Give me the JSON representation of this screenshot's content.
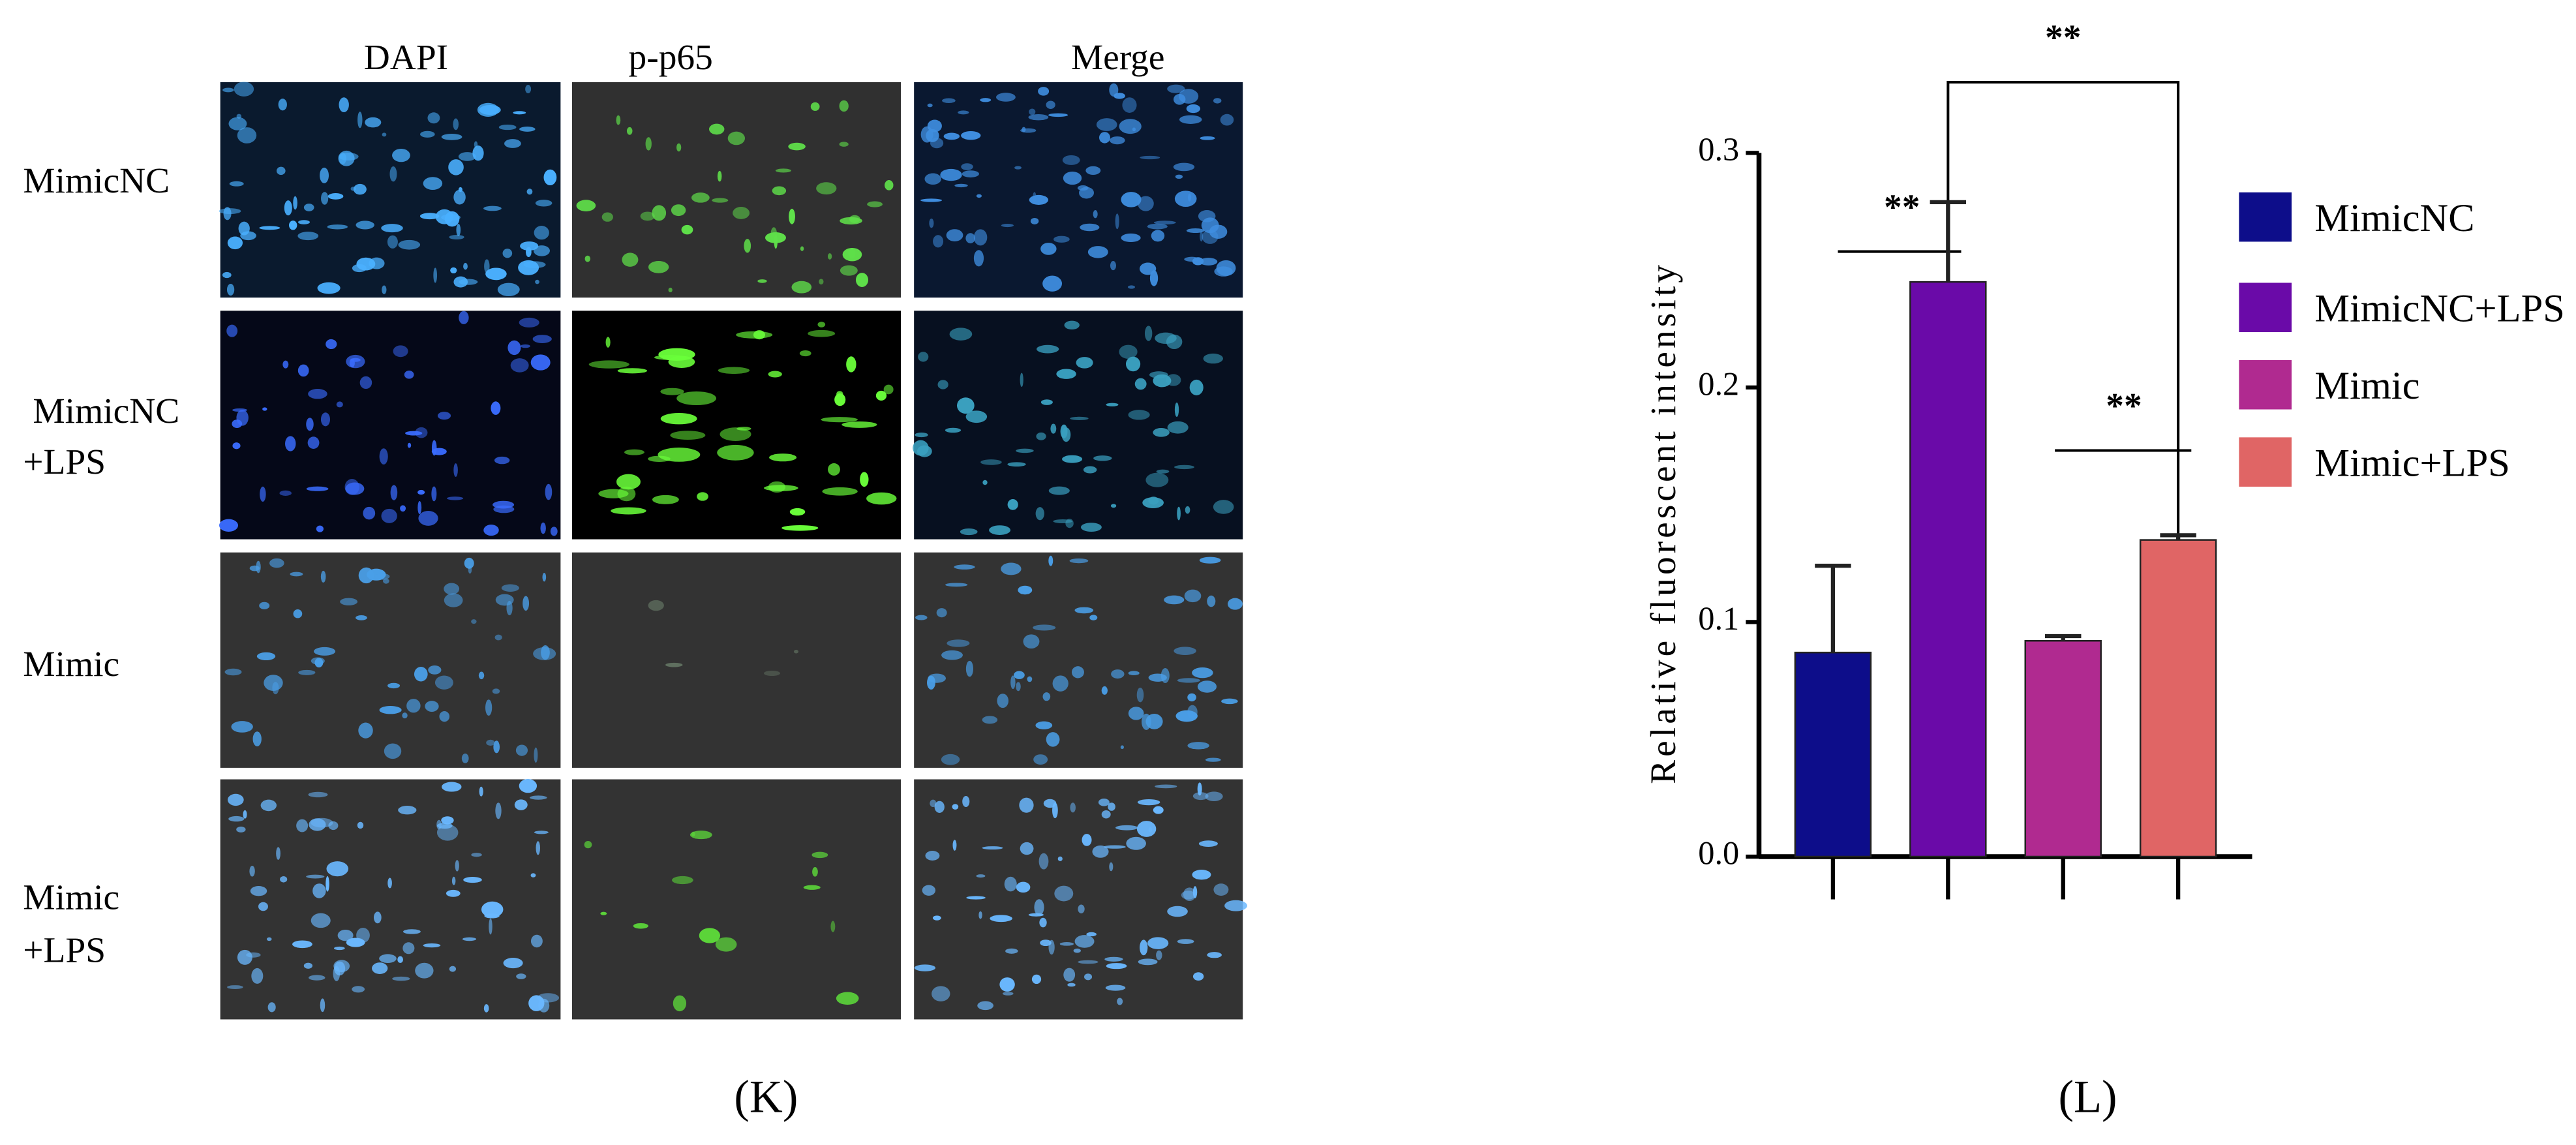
{
  "panel_k": {
    "label": "(K)",
    "columns": [
      "DAPI",
      "p-p65",
      "Merge"
    ],
    "rows": [
      {
        "label": [
          "MimicNC"
        ]
      },
      {
        "label": [
          "MimicNC",
          "+LPS"
        ]
      },
      {
        "label": [
          "Mimic"
        ]
      },
      {
        "label": [
          "Mimic",
          "+LPS"
        ]
      }
    ]
  },
  "panel_l": {
    "label": "(L)"
  },
  "chart_data": {
    "type": "bar",
    "y_label": "Relative fluorescent intensity",
    "categories": [
      null,
      null,
      null,
      null
    ],
    "values": [
      0.087,
      0.245,
      0.092,
      0.135
    ],
    "errors": [
      0.037,
      0.034,
      0.002,
      0.002
    ],
    "colors": [
      "#0d0d8a",
      "#6a0aa8",
      "#b02a90",
      "#e06565"
    ],
    "legend": [
      "MimicNC",
      "MimicNC+LPS",
      "Mimic",
      "Mimic+LPS"
    ],
    "ylim": [
      0,
      0.3
    ],
    "yticks": [
      {
        "value": 0,
        "label": "0.0"
      },
      0.1,
      0.2,
      0.3
    ],
    "annotations": [
      "**",
      "**",
      "**"
    ]
  }
}
